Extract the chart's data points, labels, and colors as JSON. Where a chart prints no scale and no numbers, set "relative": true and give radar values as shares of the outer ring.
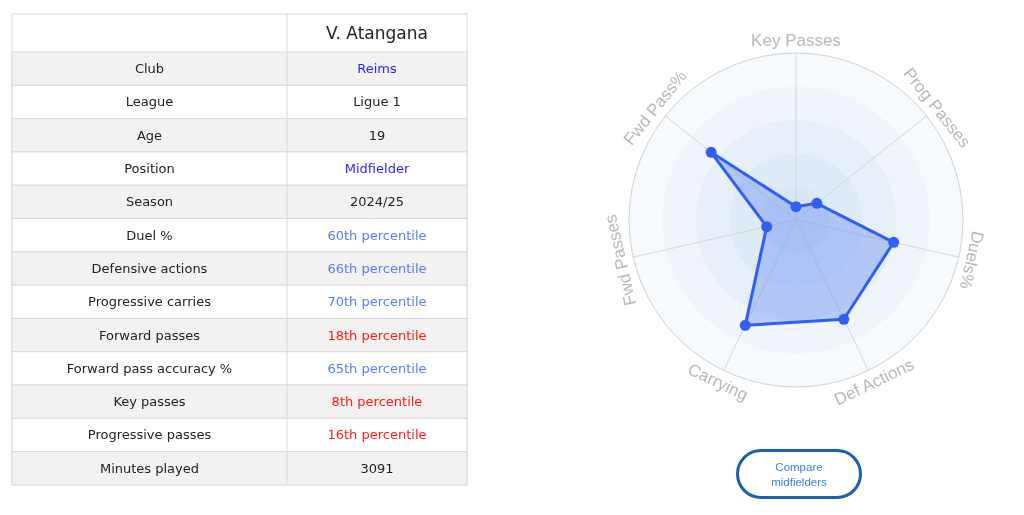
{
  "chart_data": [
    {
      "type": "other",
      "title": "V. Atangana",
      "categories": [
        "Club",
        "League",
        "Age",
        "Position",
        "Season",
        "Duel %",
        "Defensive actions",
        "Progressive carries",
        "Forward passes",
        "Forward pass accuracy %",
        "Key passes",
        "Progressive passes",
        "Minutes played"
      ],
      "value_labels": [
        "Reims",
        "Ligue 1",
        "19",
        "Midfielder",
        "2024/25",
        "60th percentile",
        "66th percentile",
        "70th percentile",
        "18th percentile",
        "65th percentile",
        "8th percentile",
        "16th percentile",
        "3091"
      ],
      "colors": [
        "#2b1fff",
        "#222222",
        "#222222",
        "#2b1fff",
        "#222222",
        "#5b7cfa",
        "#5b7cfa",
        "#5b7cfa",
        "#ff1a1a",
        "#5b7cfa",
        "#ff1a1a",
        "#ff1a1a",
        "#222222"
      ]
    },
    {
      "type": "radar",
      "categories": [
        "Key Passes",
        "Prog Passes",
        "Duels%",
        "Def Actions",
        "Carrying",
        "Fwd Passes",
        "Fwd Pass%"
      ],
      "relative": true,
      "series": [
        {
          "color": "#2f5ff5",
          "values": [
            0.08,
            0.16,
            0.6,
            0.66,
            0.7,
            0.18,
            0.65
          ]
        }
      ],
      "grid": true,
      "marker": "circle",
      "annotations": [
        "Compare midfielders"
      ]
    }
  ]
}
